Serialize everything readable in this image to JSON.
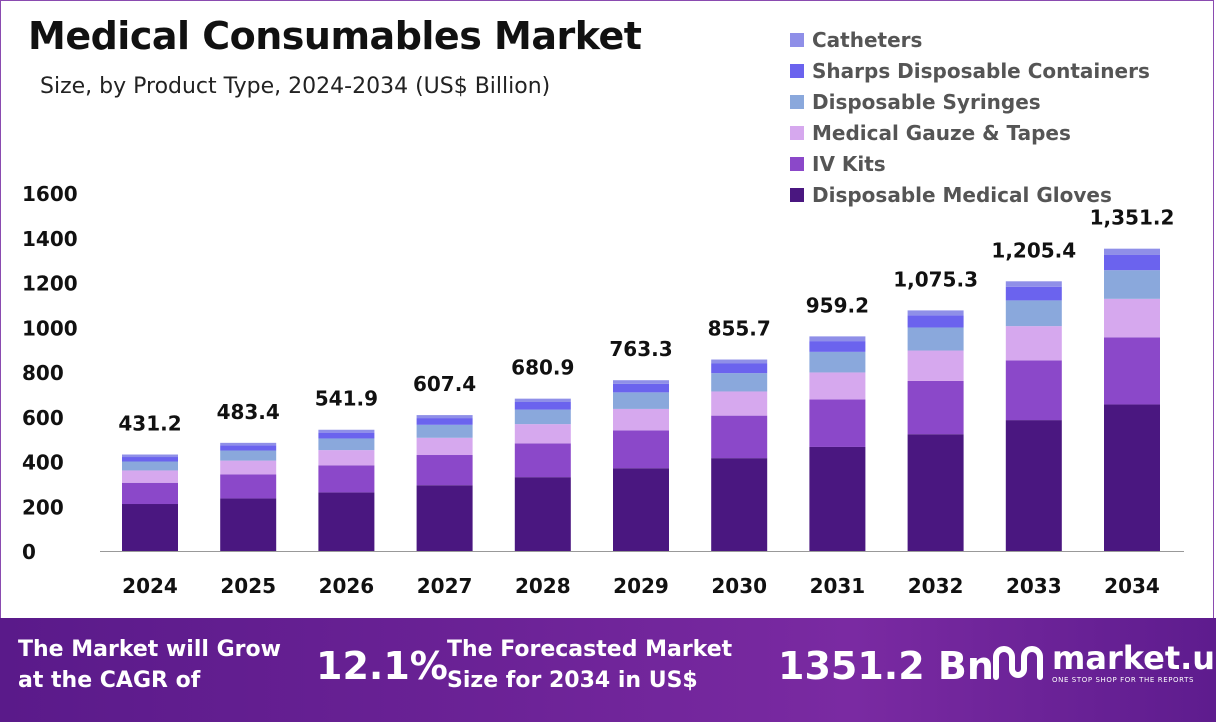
{
  "title": "Medical Consumables Market",
  "subtitle": "Size, by Product Type, 2024-2034 (US$ Billion)",
  "colors": {
    "catheters": "#8f8fe8",
    "sharps": "#6b63ee",
    "syringes": "#8aa8dc",
    "gauze": "#d6a8ee",
    "iv_kits": "#8b48c9",
    "gloves": "#4a1780"
  },
  "chart_data": {
    "type": "bar",
    "stacked": true,
    "title": "Medical Consumables Market",
    "xlabel": "",
    "ylabel": "",
    "ylim": [
      0,
      1600
    ],
    "yticks": [
      "0",
      "200",
      "400",
      "600",
      "800",
      "1000",
      "1200",
      "1400",
      "1600"
    ],
    "categories": [
      "2024",
      "2025",
      "2026",
      "2027",
      "2028",
      "2029",
      "2030",
      "2031",
      "2032",
      "2033",
      "2034"
    ],
    "totals": [
      431.2,
      483.4,
      541.9,
      607.4,
      680.9,
      763.3,
      855.7,
      959.2,
      1075.3,
      1205.4,
      1351.2
    ],
    "total_labels": [
      "431.2",
      "483.4",
      "541.9",
      "607.4",
      "680.9",
      "763.3",
      "855.7",
      "959.2",
      "1,075.3",
      "1,205.4",
      "1,351.2"
    ],
    "series": [
      {
        "name": "Disposable Medical Gloves",
        "key": "gloves",
        "values": [
          210,
          235,
          262,
          294,
          330,
          370,
          415,
          465,
          522,
          585,
          655
        ]
      },
      {
        "name": "IV Kits",
        "key": "iv_kits",
        "values": [
          95,
          107,
          121,
          135,
          151,
          169,
          190,
          212,
          238,
          267,
          300
        ]
      },
      {
        "name": "Medical Gauze & Tapes",
        "key": "gauze",
        "values": [
          55,
          62,
          68,
          77,
          86,
          96,
          108,
          121,
          136,
          153,
          172
        ]
      },
      {
        "name": "Disposable Syringes",
        "key": "syringes",
        "values": [
          40,
          45,
          52,
          58,
          65,
          74,
          82,
          92,
          103,
          115,
          128
        ]
      },
      {
        "name": "Sharps Disposable Containers",
        "key": "sharps",
        "values": [
          20,
          23,
          26,
          30,
          34,
          38,
          43,
          48,
          54,
          61,
          68
        ]
      },
      {
        "name": "Catheters",
        "key": "catheters",
        "values": [
          11.2,
          11.4,
          12.9,
          13.4,
          14.9,
          16.3,
          17.7,
          21.2,
          22.3,
          24.4,
          28.2
        ]
      }
    ]
  },
  "legend": [
    {
      "label": "Catheters",
      "key": "catheters"
    },
    {
      "label": "Sharps Disposable Containers",
      "key": "sharps"
    },
    {
      "label": "Disposable Syringes",
      "key": "syringes"
    },
    {
      "label": "Medical Gauze & Tapes",
      "key": "gauze"
    },
    {
      "label": "IV Kits",
      "key": "iv_kits"
    },
    {
      "label": "Disposable Medical Gloves",
      "key": "gloves"
    }
  ],
  "footer": {
    "cagr_line1": "The Market will Grow",
    "cagr_line2": "at the CAGR of",
    "cagr_value": "12.1%",
    "forecast_line1": "The Forecasted Market",
    "forecast_line2": "Size for 2034 in US$",
    "forecast_value": "1351.2 Bn",
    "brand_name": "market.us",
    "brand_tagline": "ONE STOP SHOP FOR THE REPORTS"
  }
}
